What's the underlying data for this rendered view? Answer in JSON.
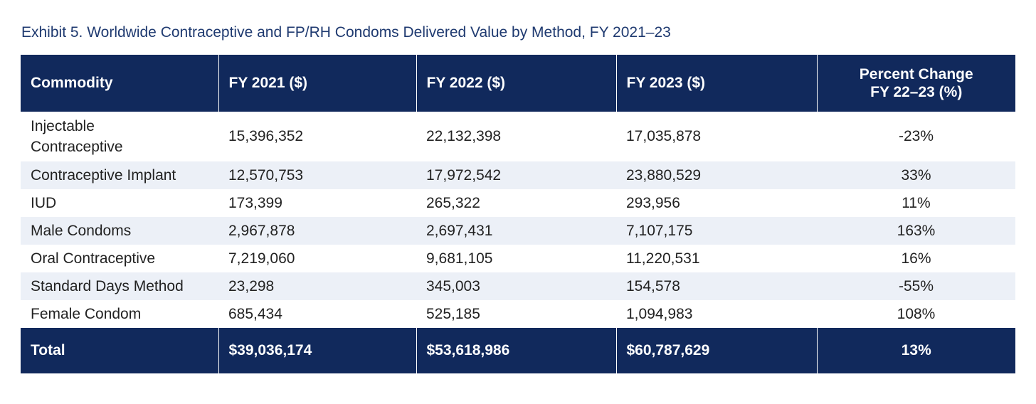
{
  "title": "Exhibit 5. Worldwide Contraceptive and FP/RH Condoms Delivered Value by Method, FY 2021–23",
  "headers": {
    "commodity": "Commodity",
    "fy2021": "FY 2021 ($)",
    "fy2022": "FY 2022 ($)",
    "fy2023": "FY 2023 ($)",
    "pct_line1": "Percent Change",
    "pct_line2": "FY 22–23 (%)"
  },
  "rows": [
    {
      "commodity_line1": "Injectable",
      "commodity_line2": "Contraceptive",
      "fy2021": "15,396,352",
      "fy2022": "22,132,398",
      "fy2023": "17,035,878",
      "pct": "-23%"
    },
    {
      "commodity": "Contraceptive Implant",
      "fy2021": "12,570,753",
      "fy2022": "17,972,542",
      "fy2023": "23,880,529",
      "pct": "33%"
    },
    {
      "commodity": "IUD",
      "fy2021": "173,399",
      "fy2022": "265,322",
      "fy2023": "293,956",
      "pct": "11%"
    },
    {
      "commodity": "Male Condoms",
      "fy2021": "2,967,878",
      "fy2022": "2,697,431",
      "fy2023": "7,107,175",
      "pct": "163%"
    },
    {
      "commodity": "Oral Contraceptive",
      "fy2021": "7,219,060",
      "fy2022": "9,681,105",
      "fy2023": "11,220,531",
      "pct": "16%"
    },
    {
      "commodity": "Standard Days Method",
      "fy2021": "23,298",
      "fy2022": "345,003",
      "fy2023": "154,578",
      "pct": "-55%"
    },
    {
      "commodity": "Female Condom",
      "fy2021": "685,434",
      "fy2022": "525,185",
      "fy2023": "1,094,983",
      "pct": "108%"
    }
  ],
  "total": {
    "label": "Total",
    "fy2021": "$39,036,174",
    "fy2022": "$53,618,986",
    "fy2023": "$60,787,629",
    "pct": "13%"
  },
  "colors": {
    "header_bg": "#11295c",
    "title_color": "#1f3a70",
    "alt_row_bg": "#ecf0f7"
  }
}
